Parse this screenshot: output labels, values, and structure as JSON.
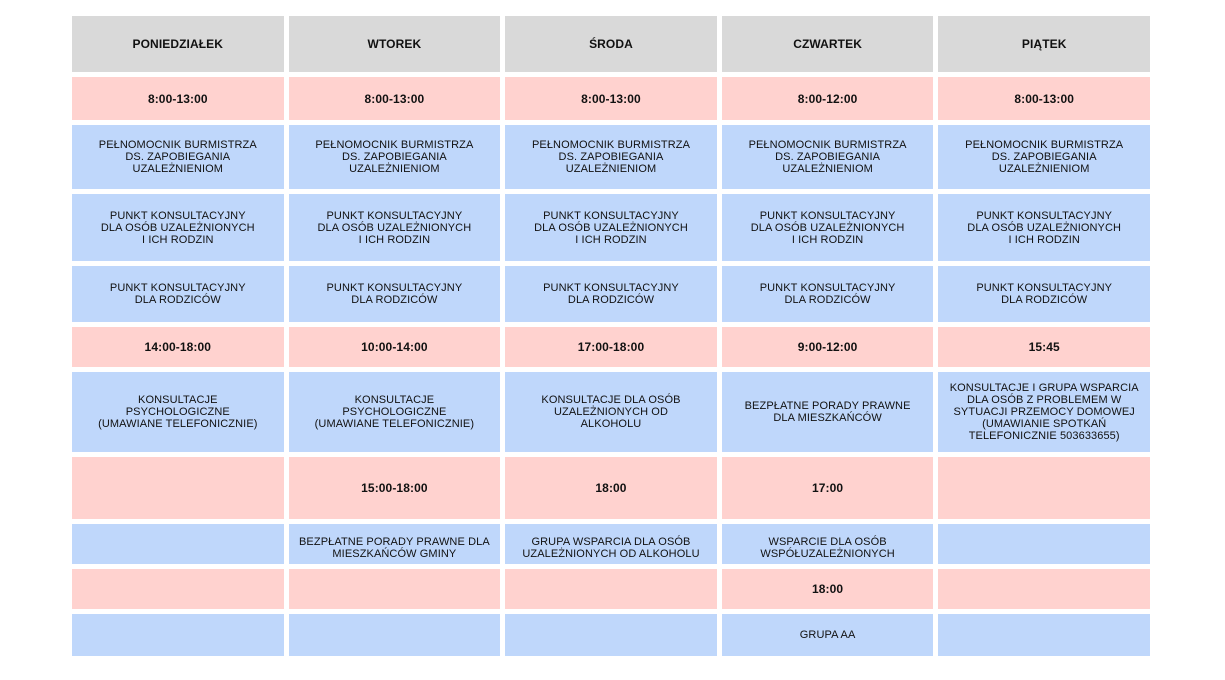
{
  "days": [
    "PONIEDZIAŁEK",
    "WTOREK",
    "ŚRODA",
    "CZWARTEK",
    "PIĄTEK"
  ],
  "rows": [
    {
      "kind": "time",
      "cells": [
        "8:00-13:00",
        "8:00-13:00",
        "8:00-13:00",
        "8:00-12:00",
        "8:00-13:00"
      ]
    },
    {
      "kind": "desc",
      "cells": [
        "PEŁNOMOCNIK BURMISTRZA\nDS. ZAPOBIEGANIA\nUZALEŻNIENIOM",
        "PEŁNOMOCNIK BURMISTRZA\nDS. ZAPOBIEGANIA\nUZALEŻNIENIOM",
        "PEŁNOMOCNIK BURMISTRZA\nDS. ZAPOBIEGANIA\nUZALEŻNIENIOM",
        "PEŁNOMOCNIK BURMISTRZA\nDS. ZAPOBIEGANIA\nUZALEŻNIENIOM",
        "PEŁNOMOCNIK BURMISTRZA\nDS. ZAPOBIEGANIA\nUZALEŻNIENIOM"
      ]
    },
    {
      "kind": "desc",
      "cells": [
        "PUNKT KONSULTACYJNY\nDLA OSÓB UZALEŻNIONYCH\nI ICH RODZIN",
        "PUNKT KONSULTACYJNY\nDLA OSÓB UZALEŻNIONYCH\nI ICH RODZIN",
        "PUNKT KONSULTACYJNY\nDLA OSÓB UZALEŻNIONYCH\nI ICH RODZIN",
        "PUNKT KONSULTACYJNY\nDLA OSÓB UZALEŻNIONYCH\nI ICH RODZIN",
        "PUNKT KONSULTACYJNY\nDLA OSÓB UZALEŻNIONYCH\nI ICH RODZIN"
      ]
    },
    {
      "kind": "desc",
      "cells": [
        "PUNKT KONSULTACYJNY\nDLA RODZICÓW",
        "PUNKT KONSULTACYJNY\nDLA RODZICÓW",
        "PUNKT KONSULTACYJNY\nDLA RODZICÓW",
        "PUNKT KONSULTACYJNY\nDLA RODZICÓW",
        "PUNKT KONSULTACYJNY\nDLA RODZICÓW"
      ]
    },
    {
      "kind": "time",
      "cells": [
        "14:00-18:00",
        "10:00-14:00",
        "17:00-18:00",
        "9:00-12:00",
        "15:45"
      ]
    },
    {
      "kind": "desc",
      "cells": [
        "KONSULTACJE\nPSYCHOLOGICZNE\n(UMAWIANE TELEFONICZNIE)",
        "KONSULTACJE\nPSYCHOLOGICZNE\n(UMAWIANE TELEFONICZNIE)",
        "KONSULTACJE DLA OSÓB\nUZALEŻNIONYCH OD\nALKOHOLU",
        "BEZPŁATNE PORADY PRAWNE\nDLA MIESZKAŃCÓW",
        "KONSULTACJE I GRUPA WSPARCIA\nDLA OSÓB Z PROBLEMEM W\nSYTUACJI PRZEMOCY DOMOWEJ\n(UMAWIANIE SPOTKAŃ\nTELEFONICZNIE 503633655)"
      ]
    },
    {
      "kind": "time",
      "cells": [
        "",
        "15:00-18:00",
        "18:00",
        "17:00",
        ""
      ]
    },
    {
      "kind": "desc",
      "cells": [
        "",
        "BEZPŁATNE PORADY PRAWNE DLA\nMIESZKAŃCÓW GMINY",
        "GRUPA WSPARCIA DLA OSÓB\nUZALEŻNIONYCH OD ALKOHOLU",
        "WSPARCIE DLA OSÓB\nWSPÓŁUZALEŻNIONYCH",
        ""
      ]
    },
    {
      "kind": "time",
      "cells": [
        "",
        "",
        "",
        "18:00",
        ""
      ]
    },
    {
      "kind": "desc",
      "cells": [
        "",
        "",
        "",
        "GRUPA AA",
        ""
      ]
    }
  ]
}
